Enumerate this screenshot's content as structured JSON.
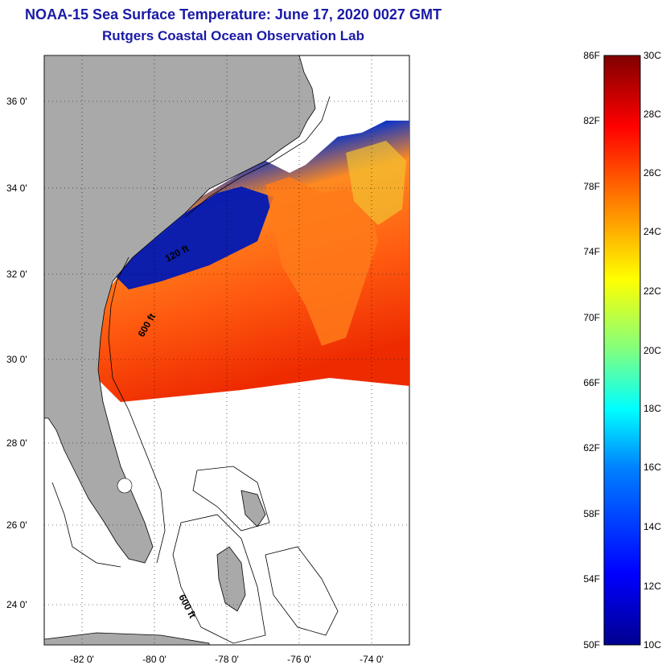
{
  "title": {
    "line1": "NOAA-15 Sea Surface Temperature:  June 17, 2020 0027 GMT",
    "line2": "Rutgers Coastal Ocean Observation Lab"
  },
  "map": {
    "lat_labels": [
      "36 0'",
      "34 0'",
      "32 0'",
      "30 0'",
      "28 0'",
      "26 0'",
      "24 0'"
    ],
    "lon_labels": [
      "-82 0'",
      "-80 0'",
      "-78 0'",
      "-76 0'",
      "-74 0'"
    ],
    "isobath_labels": [
      "120 ft",
      "600 ft",
      "600 ft"
    ],
    "colors": {
      "land": "#a9a9a9",
      "frame": "#000000"
    }
  },
  "colorbar": {
    "fahrenheit_labels": [
      "86F",
      "82F",
      "78F",
      "74F",
      "70F",
      "66F",
      "62F",
      "58F",
      "54F",
      "50F"
    ],
    "celsius_labels": [
      "30C",
      "28C",
      "26C",
      "24C",
      "22C",
      "20C",
      "18C",
      "16C",
      "14C",
      "12C",
      "10C"
    ],
    "colors": [
      "#00008f",
      "#0000ff",
      "#0080ff",
      "#00ffff",
      "#80ff80",
      "#ffff00",
      "#ff8000",
      "#ff0000",
      "#800000"
    ]
  }
}
